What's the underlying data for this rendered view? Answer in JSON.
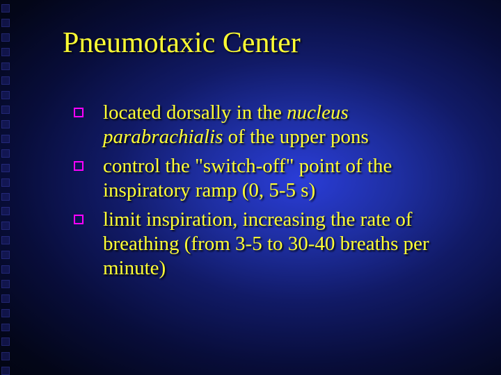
{
  "slide": {
    "title": "Pneumotaxic Center",
    "title_color": "#ffff33",
    "title_fontsize": 42,
    "body_color": "#ffff33",
    "body_fontsize": 29,
    "bullet_border_color": "#ff00ff",
    "background_gradient": [
      "#2a3dd8",
      "#1e2ea0",
      "#111a66",
      "#080d3a",
      "#030618",
      "#000000"
    ],
    "left_decor_square_color": "#1b1f6b",
    "left_decor_square_count": 26,
    "bullets": [
      {
        "pre": "located dorsally in the ",
        "italic": "nucleus parabrachialis",
        "post": " of the upper pons"
      },
      {
        "pre": "control the \"switch-off\" point of the inspiratory ramp (0, 5-5 s)",
        "italic": "",
        "post": ""
      },
      {
        "pre": "limit inspiration, increasing the rate of breathing (from 3-5 to 30-40 breaths per minute)",
        "italic": "",
        "post": ""
      }
    ]
  }
}
